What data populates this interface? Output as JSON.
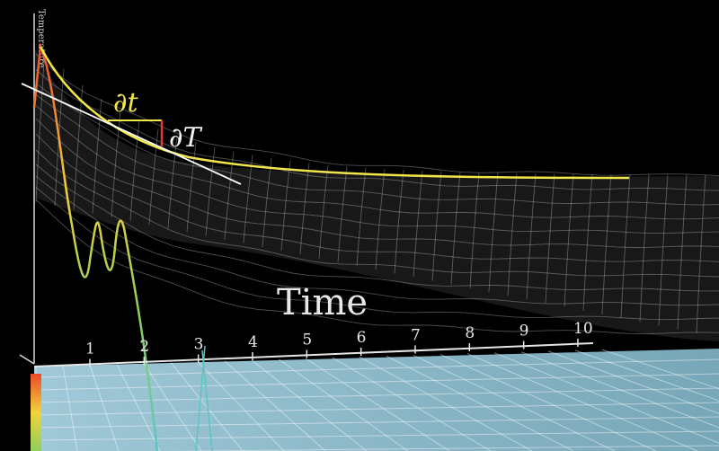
{
  "axes": {
    "vertical_title": "Temperature",
    "time_title": "Time",
    "time_ticks": [
      "1",
      "2",
      "3",
      "4",
      "5",
      "6",
      "7",
      "8",
      "9",
      "10"
    ]
  },
  "annotations": {
    "dt": "∂t",
    "dT": "∂T"
  },
  "colors": {
    "background": "#000000",
    "surface_grid": "#d9d9d9",
    "floor_plane": "#a9d3e3",
    "tangent_line": "#ffffff",
    "dt_bracket": "#f1e64a",
    "dT_bracket": "#e53b2c",
    "curve_hot": "#e94a2a",
    "curve_warm": "#f3d23a",
    "curve_mid": "#8fcf5a",
    "curve_cool": "#57c7c3"
  }
}
